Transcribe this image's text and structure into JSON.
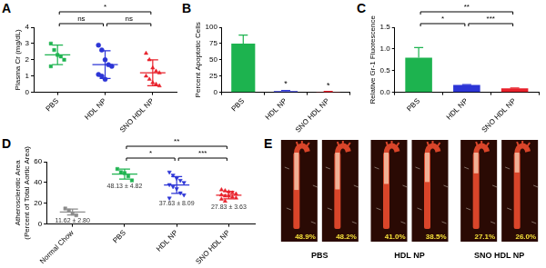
{
  "chart_data": [
    {
      "panel": "A",
      "type": "scatter",
      "y_label": "Plasma Cr (mg/dL)",
      "categories": [
        "PBS",
        "HDL NP",
        "SNO HDL NP"
      ],
      "groups": [
        {
          "color": "#1db34f",
          "marker": "square",
          "values": [
            3.0,
            2.6,
            2.3,
            2.2,
            2.0,
            1.6
          ],
          "mean": 2.3,
          "sd": 0.6
        },
        {
          "color": "#2c35d6",
          "marker": "circle",
          "values": [
            2.9,
            2.6,
            2.0,
            1.7,
            1.6,
            1.1,
            1.0,
            0.8
          ],
          "mean": 1.7,
          "sd": 0.85
        },
        {
          "color": "#e8202a",
          "marker": "triangle",
          "values": [
            2.4,
            2.0,
            1.5,
            1.3,
            1.2,
            1.0,
            0.8,
            0.6,
            0.5,
            0.4
          ],
          "mean": 1.2,
          "sd": 0.8
        }
      ],
      "ylim": [
        0,
        4
      ],
      "yticks": [
        0,
        1,
        2,
        3,
        4
      ],
      "grid": false,
      "comparisons": [
        {
          "from": "PBS",
          "to": "HDL NP",
          "label": "ns"
        },
        {
          "from": "HDL NP",
          "to": "SNO HDL NP",
          "label": "ns"
        },
        {
          "from": "PBS",
          "to": "SNO HDL NP",
          "label": "*"
        }
      ]
    },
    {
      "panel": "B",
      "type": "bar",
      "y_label": "Percent Apoptotic Cells",
      "categories": [
        "PBS",
        "HDL NP",
        "SNO HDL NP"
      ],
      "values": [
        75,
        2,
        1
      ],
      "errors": [
        13,
        1,
        0.5
      ],
      "colors": [
        "#1db34f",
        "#2c35d6",
        "#e8202a"
      ],
      "ylim": [
        0,
        100
      ],
      "yticks": [
        0,
        25,
        50,
        75,
        100
      ],
      "grid": false,
      "annotations": [
        {
          "category": "HDL NP",
          "label": "*"
        },
        {
          "category": "SNO HDL NP",
          "label": "*"
        }
      ]
    },
    {
      "panel": "C",
      "type": "bar",
      "y_label": "Relative Gr-1 Fluorescence",
      "categories": [
        "PBS",
        "HDL NP",
        "SNO HDL NP"
      ],
      "values": [
        0.8,
        0.17,
        0.09
      ],
      "errors": [
        0.23,
        0.01,
        0.01
      ],
      "colors": [
        "#1db34f",
        "#2c35d6",
        "#e8202a"
      ],
      "ylim": [
        0,
        1.5
      ],
      "yticks": [
        {
          "value": 0,
          "label": "0.0"
        },
        0.5,
        {
          "value": 1,
          "label": "1.0"
        },
        1.5
      ],
      "grid": false,
      "comparisons": [
        {
          "from": "PBS",
          "to": "HDL NP",
          "label": "*"
        },
        {
          "from": "HDL NP",
          "to": "SNO HDL NP",
          "label": "***"
        },
        {
          "from": "PBS",
          "to": "SNO HDL NP",
          "label": "**"
        }
      ]
    },
    {
      "panel": "D",
      "type": "scatter",
      "y_label": [
        "Atherosclerotic Area",
        "(Percent of Total Aortic Area)"
      ],
      "categories": [
        "Normal Chow",
        "PBS",
        "HDL NP",
        "SNO HDL NP"
      ],
      "groups": [
        {
          "color": "#8c8c8c",
          "marker": "square",
          "values": [
            15,
            13,
            10,
            8.5
          ],
          "mean": 11.62,
          "sd": 2.8,
          "label": "11.62 ± 2.80"
        },
        {
          "color": "#1db34f",
          "marker": "square",
          "values": [
            53,
            50,
            49,
            46,
            42
          ],
          "mean": 48.13,
          "sd": 4.82,
          "label": "48.13 ± 4.82"
        },
        {
          "color": "#2c35d6",
          "marker": "triangle-down",
          "values": [
            50,
            47,
            44,
            42,
            40,
            38,
            36,
            34,
            30,
            28,
            25
          ],
          "mean": 37.63,
          "sd": 8.09,
          "label": "37.63 ± 8.09"
        },
        {
          "color": "#e8202a",
          "marker": "triangle",
          "values": [
            33,
            32,
            31,
            30,
            29,
            28,
            27,
            27,
            26,
            25,
            24,
            22
          ],
          "mean": 27.83,
          "sd": 3.63,
          "label": "27.83 ± 3.63"
        }
      ],
      "ylim": [
        0,
        60
      ],
      "yticks": [
        0,
        20,
        40,
        60
      ],
      "grid": false,
      "comparisons": [
        {
          "from": "PBS",
          "to": "HDL NP",
          "label": "*"
        },
        {
          "from": "HDL NP",
          "to": "SNO HDL NP",
          "label": "***"
        },
        {
          "from": "PBS",
          "to": "SNO HDL NP",
          "label": "**"
        }
      ]
    }
  ],
  "panel_e": {
    "panel": "E",
    "groups": [
      {
        "name": "PBS",
        "values": [
          48.9,
          48.2
        ],
        "value_labels": [
          "48.9%",
          "48.2%"
        ]
      },
      {
        "name": "HDL NP",
        "values": [
          41.0,
          38.5
        ],
        "value_labels": [
          "41.0%",
          "38.5%"
        ]
      },
      {
        "name": "SNO HDL NP",
        "values": [
          27.1,
          26.0
        ],
        "value_labels": [
          "27.1%",
          "26.0%"
        ]
      }
    ]
  }
}
